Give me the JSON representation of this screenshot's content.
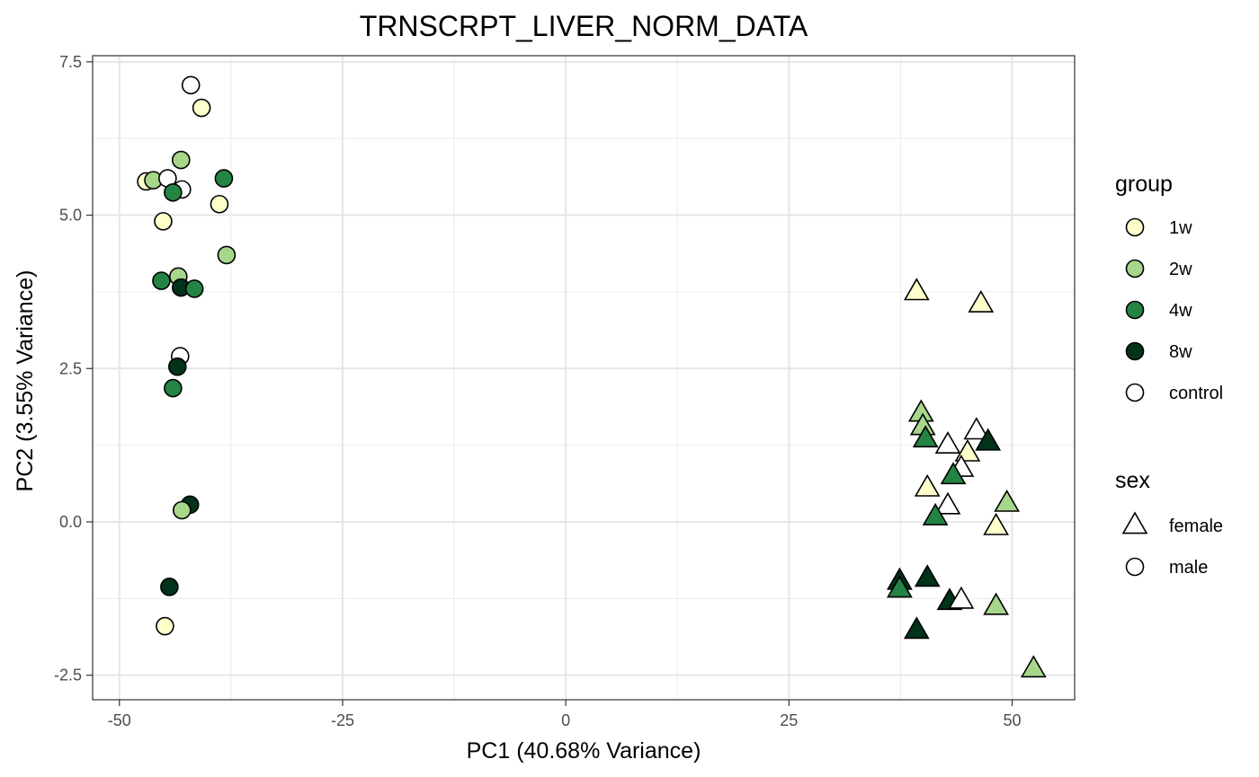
{
  "chart_data": {
    "type": "scatter",
    "title": "TRNSCRPT_LIVER_NORM_DATA",
    "xlabel": "PC1 (40.68% Variance)",
    "ylabel": "PC2 (3.55% Variance)",
    "xlim": [
      -53,
      57
    ],
    "ylim": [
      -2.9,
      7.6
    ],
    "xticks": [
      -50,
      -25,
      0,
      25,
      50
    ],
    "xtick_labels": [
      "-50",
      "-25",
      "0",
      "25",
      "50"
    ],
    "yticks": [
      -2.5,
      0,
      2.5,
      5,
      7.5
    ],
    "ytick_labels": [
      "-2.5",
      "0.0",
      "2.5",
      "5.0",
      "7.5"
    ],
    "grid": true,
    "legend_position": "right",
    "legend": {
      "group": {
        "title": "group",
        "items": [
          {
            "label": "1w",
            "color": "#ffffcc"
          },
          {
            "label": "2w",
            "color": "#a6d78a"
          },
          {
            "label": "4w",
            "color": "#238443"
          },
          {
            "label": "8w",
            "color": "#00331a"
          },
          {
            "label": "control",
            "color": "#ffffff"
          }
        ]
      },
      "sex": {
        "title": "sex",
        "items": [
          {
            "label": "female",
            "shape": "triangle"
          },
          {
            "label": "male",
            "shape": "circle"
          }
        ]
      }
    },
    "points": [
      {
        "x": -42.0,
        "y": 7.12,
        "group": "control",
        "sex": "male"
      },
      {
        "x": -40.8,
        "y": 6.75,
        "group": "1w",
        "sex": "male"
      },
      {
        "x": -43.1,
        "y": 5.9,
        "group": "2w",
        "sex": "male"
      },
      {
        "x": -47.0,
        "y": 5.55,
        "group": "1w",
        "sex": "male"
      },
      {
        "x": -46.2,
        "y": 5.57,
        "group": "2w",
        "sex": "male"
      },
      {
        "x": -44.6,
        "y": 5.6,
        "group": "control",
        "sex": "male"
      },
      {
        "x": -43.0,
        "y": 5.42,
        "group": "control",
        "sex": "male"
      },
      {
        "x": -44.0,
        "y": 5.37,
        "group": "4w",
        "sex": "male"
      },
      {
        "x": -38.3,
        "y": 5.6,
        "group": "4w",
        "sex": "male"
      },
      {
        "x": -38.8,
        "y": 5.18,
        "group": "1w",
        "sex": "male"
      },
      {
        "x": -45.1,
        "y": 4.9,
        "group": "1w",
        "sex": "male"
      },
      {
        "x": -38.0,
        "y": 4.35,
        "group": "2w",
        "sex": "male"
      },
      {
        "x": -43.4,
        "y": 4.0,
        "group": "2w",
        "sex": "male"
      },
      {
        "x": -45.3,
        "y": 3.93,
        "group": "4w",
        "sex": "male"
      },
      {
        "x": -43.1,
        "y": 3.82,
        "group": "8w",
        "sex": "male"
      },
      {
        "x": -41.6,
        "y": 3.8,
        "group": "4w",
        "sex": "male"
      },
      {
        "x": -43.2,
        "y": 2.7,
        "group": "control",
        "sex": "male"
      },
      {
        "x": -43.5,
        "y": 2.53,
        "group": "8w",
        "sex": "male"
      },
      {
        "x": -44.0,
        "y": 2.18,
        "group": "4w",
        "sex": "male"
      },
      {
        "x": -42.1,
        "y": 0.28,
        "group": "8w",
        "sex": "male"
      },
      {
        "x": -43.0,
        "y": 0.19,
        "group": "2w",
        "sex": "male"
      },
      {
        "x": -44.4,
        "y": -1.06,
        "group": "8w",
        "sex": "male"
      },
      {
        "x": -44.9,
        "y": -1.7,
        "group": "1w",
        "sex": "male"
      },
      {
        "x": 39.3,
        "y": 3.75,
        "group": "1w",
        "sex": "female"
      },
      {
        "x": 46.5,
        "y": 3.55,
        "group": "1w",
        "sex": "female"
      },
      {
        "x": 39.8,
        "y": 1.77,
        "group": "2w",
        "sex": "female"
      },
      {
        "x": 40.0,
        "y": 1.55,
        "group": "2w",
        "sex": "female"
      },
      {
        "x": 40.3,
        "y": 1.35,
        "group": "4w",
        "sex": "female"
      },
      {
        "x": 46.0,
        "y": 1.48,
        "group": "control",
        "sex": "female"
      },
      {
        "x": 47.3,
        "y": 1.3,
        "group": "8w",
        "sex": "female"
      },
      {
        "x": 42.8,
        "y": 1.25,
        "group": "control",
        "sex": "female"
      },
      {
        "x": 45.0,
        "y": 1.12,
        "group": "1w",
        "sex": "female"
      },
      {
        "x": 44.3,
        "y": 0.87,
        "group": "control",
        "sex": "female"
      },
      {
        "x": 43.4,
        "y": 0.75,
        "group": "4w",
        "sex": "female"
      },
      {
        "x": 40.5,
        "y": 0.55,
        "group": "1w",
        "sex": "female"
      },
      {
        "x": 49.4,
        "y": 0.3,
        "group": "2w",
        "sex": "female"
      },
      {
        "x": 42.8,
        "y": 0.26,
        "group": "control",
        "sex": "female"
      },
      {
        "x": 41.4,
        "y": 0.08,
        "group": "4w",
        "sex": "female"
      },
      {
        "x": 48.2,
        "y": -0.08,
        "group": "1w",
        "sex": "female"
      },
      {
        "x": 37.4,
        "y": -0.97,
        "group": "8w",
        "sex": "female"
      },
      {
        "x": 37.4,
        "y": -1.1,
        "group": "4w",
        "sex": "female"
      },
      {
        "x": 40.5,
        "y": -0.92,
        "group": "8w",
        "sex": "female"
      },
      {
        "x": 43.0,
        "y": -1.3,
        "group": "8w",
        "sex": "female"
      },
      {
        "x": 44.3,
        "y": -1.28,
        "group": "control",
        "sex": "female"
      },
      {
        "x": 48.2,
        "y": -1.38,
        "group": "2w",
        "sex": "female"
      },
      {
        "x": 39.3,
        "y": -1.77,
        "group": "8w",
        "sex": "female"
      },
      {
        "x": 52.4,
        "y": -2.4,
        "group": "2w",
        "sex": "female"
      }
    ]
  }
}
